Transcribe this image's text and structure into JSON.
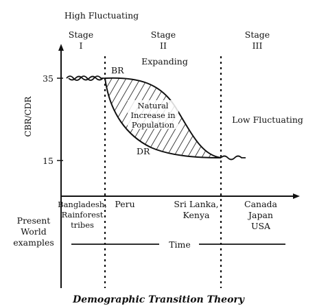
{
  "diagram": {
    "caption": "Demographic Transition Theory",
    "y_axis_label": "CBR/CDR",
    "y_ticks": [
      "35",
      "15"
    ],
    "stages": [
      {
        "title": "Stage",
        "numeral": "I",
        "description": "High Fluctuating"
      },
      {
        "title": "Stage",
        "numeral": "II",
        "description": "Expanding"
      },
      {
        "title": "Stage",
        "numeral": "III",
        "description": "Low Fluctuating"
      }
    ],
    "curve_labels": {
      "birth_rate": "BR",
      "death_rate": "DR",
      "natural_increase": [
        "Natural",
        "Increase in",
        "Population"
      ]
    },
    "examples_label": [
      "Present",
      "World",
      "examples"
    ],
    "examples": {
      "stage1": [
        "Bangladesh,",
        "Rainforest",
        "tribes"
      ],
      "stage2_early": [
        "Peru"
      ],
      "stage2_late": [
        "Sri Lanka,",
        "Kenya"
      ],
      "stage3": [
        "Canada",
        "Japan",
        "USA"
      ]
    },
    "time_label": "Time",
    "colors": {
      "ink": "#111111",
      "background": "#ffffff"
    }
  }
}
